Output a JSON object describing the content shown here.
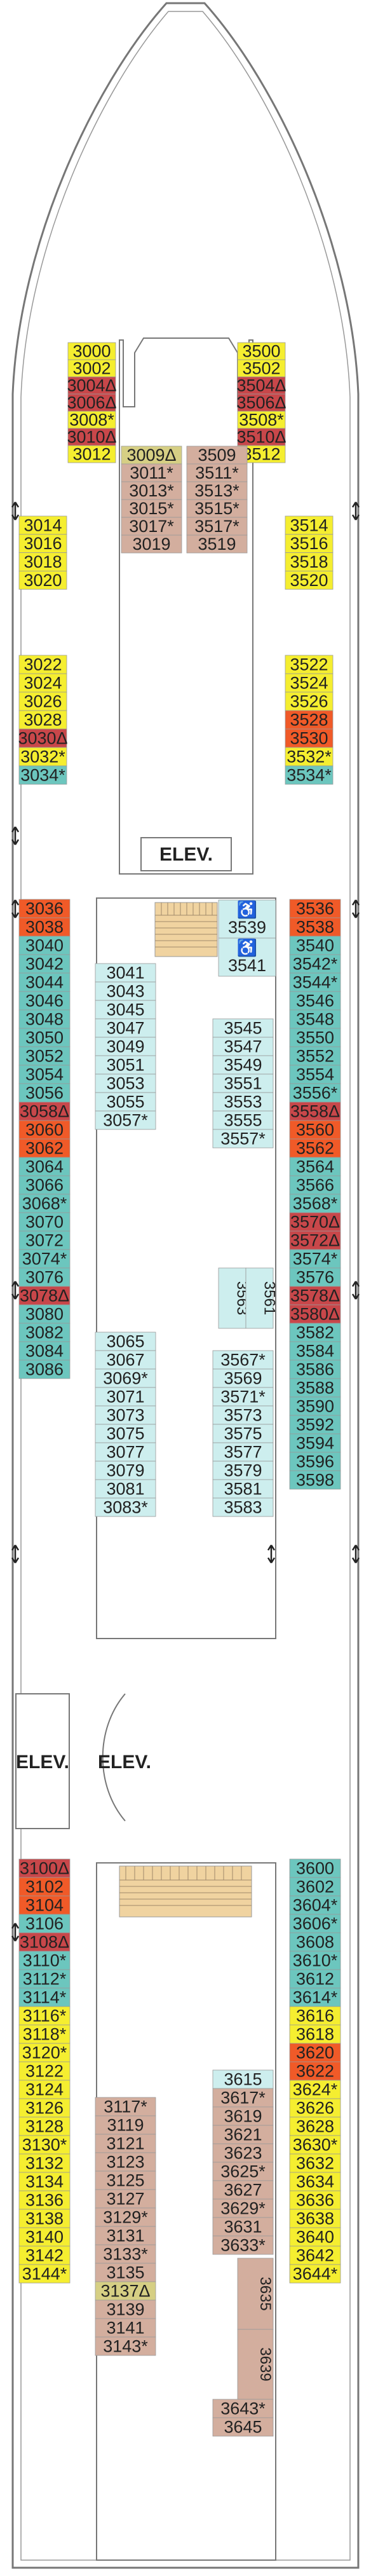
{
  "colors": {
    "yellow": "#f5ee30",
    "teal": "#6cc6be",
    "light_teal": "#cdeeee",
    "tan": "#d3ae9e",
    "orange": "#f05a28",
    "red_dark": "#c8474a",
    "olive": "#d6cf84",
    "stair": "#f0d3a0",
    "floor": "#ffffff",
    "outline": "#777777"
  },
  "legend_symbols": {
    "connecting": "*",
    "third_fourth_berth": "Δ"
  },
  "elevator_labels": [
    "ELEV.",
    "ELEV.",
    "ELEV."
  ],
  "cabins": [
    {
      "n": "3000",
      "c": "yellow"
    },
    {
      "n": "3002",
      "c": "yellow"
    },
    {
      "n": "3004",
      "s": "Δ",
      "c": "red_dark"
    },
    {
      "n": "3006",
      "s": "Δ",
      "c": "red_dark"
    },
    {
      "n": "3008",
      "s": "*",
      "c": "yellow"
    },
    {
      "n": "3010",
      "s": "Δ",
      "c": "red_dark"
    },
    {
      "n": "3012",
      "c": "yellow"
    },
    {
      "n": "3014",
      "c": "yellow"
    },
    {
      "n": "3016",
      "c": "yellow"
    },
    {
      "n": "3018",
      "c": "yellow"
    },
    {
      "n": "3020",
      "c": "yellow"
    },
    {
      "n": "3022",
      "c": "yellow"
    },
    {
      "n": "3024",
      "c": "yellow"
    },
    {
      "n": "3026",
      "c": "yellow"
    },
    {
      "n": "3028",
      "c": "yellow"
    },
    {
      "n": "3030",
      "s": "Δ",
      "c": "red_dark"
    },
    {
      "n": "3032",
      "s": "*",
      "c": "yellow"
    },
    {
      "n": "3034",
      "s": "*",
      "c": "teal"
    },
    {
      "n": "3500",
      "c": "yellow"
    },
    {
      "n": "3502",
      "c": "yellow"
    },
    {
      "n": "3504",
      "s": "Δ",
      "c": "red_dark"
    },
    {
      "n": "3506",
      "s": "Δ",
      "c": "red_dark"
    },
    {
      "n": "3508",
      "s": "*",
      "c": "yellow"
    },
    {
      "n": "3510",
      "s": "Δ",
      "c": "red_dark"
    },
    {
      "n": "3512",
      "c": "yellow"
    },
    {
      "n": "3514",
      "c": "yellow"
    },
    {
      "n": "3516",
      "c": "yellow"
    },
    {
      "n": "3518",
      "c": "yellow"
    },
    {
      "n": "3520",
      "c": "yellow"
    },
    {
      "n": "3522",
      "c": "yellow"
    },
    {
      "n": "3524",
      "c": "yellow"
    },
    {
      "n": "3526",
      "c": "yellow"
    },
    {
      "n": "3528",
      "c": "orange"
    },
    {
      "n": "3530",
      "c": "orange"
    },
    {
      "n": "3532",
      "s": "*",
      "c": "yellow"
    },
    {
      "n": "3534",
      "s": "*",
      "c": "teal"
    },
    {
      "n": "3009",
      "s": "Δ",
      "c": "olive"
    },
    {
      "n": "3011",
      "s": "*",
      "c": "tan"
    },
    {
      "n": "3013",
      "s": "*",
      "c": "tan"
    },
    {
      "n": "3015",
      "s": "*",
      "c": "tan"
    },
    {
      "n": "3017",
      "s": "*",
      "c": "tan"
    },
    {
      "n": "3019",
      "c": "tan"
    },
    {
      "n": "3509",
      "c": "tan"
    },
    {
      "n": "3511",
      "s": "*",
      "c": "tan"
    },
    {
      "n": "3513",
      "s": "*",
      "c": "tan"
    },
    {
      "n": "3515",
      "s": "*",
      "c": "tan"
    },
    {
      "n": "3517",
      "s": "*",
      "c": "tan"
    },
    {
      "n": "3519",
      "c": "tan"
    },
    {
      "n": "3036",
      "c": "orange"
    },
    {
      "n": "3038",
      "c": "orange"
    },
    {
      "n": "3040",
      "c": "teal"
    },
    {
      "n": "3042",
      "c": "teal"
    },
    {
      "n": "3044",
      "c": "teal"
    },
    {
      "n": "3046",
      "c": "teal"
    },
    {
      "n": "3048",
      "c": "teal"
    },
    {
      "n": "3050",
      "c": "teal"
    },
    {
      "n": "3052",
      "c": "teal"
    },
    {
      "n": "3054",
      "c": "teal"
    },
    {
      "n": "3056",
      "c": "teal"
    },
    {
      "n": "3058",
      "s": "Δ",
      "c": "red_dark"
    },
    {
      "n": "3060",
      "c": "orange"
    },
    {
      "n": "3062",
      "c": "orange"
    },
    {
      "n": "3064",
      "c": "teal"
    },
    {
      "n": "3066",
      "c": "teal"
    },
    {
      "n": "3068",
      "s": "*",
      "c": "teal"
    },
    {
      "n": "3070",
      "c": "teal"
    },
    {
      "n": "3072",
      "c": "teal"
    },
    {
      "n": "3074",
      "s": "*",
      "c": "teal"
    },
    {
      "n": "3076",
      "c": "teal"
    },
    {
      "n": "3078",
      "s": "Δ",
      "c": "red_dark"
    },
    {
      "n": "3080",
      "c": "teal"
    },
    {
      "n": "3082",
      "c": "teal"
    },
    {
      "n": "3084",
      "c": "teal"
    },
    {
      "n": "3086",
      "c": "teal"
    },
    {
      "n": "3536",
      "c": "orange"
    },
    {
      "n": "3538",
      "c": "orange"
    },
    {
      "n": "3540",
      "c": "teal"
    },
    {
      "n": "3542",
      "s": "*",
      "c": "teal"
    },
    {
      "n": "3544",
      "s": "*",
      "c": "teal"
    },
    {
      "n": "3546",
      "c": "teal"
    },
    {
      "n": "3548",
      "c": "teal"
    },
    {
      "n": "3550",
      "c": "teal"
    },
    {
      "n": "3552",
      "c": "teal"
    },
    {
      "n": "3554",
      "c": "teal"
    },
    {
      "n": "3556",
      "s": "*",
      "c": "teal"
    },
    {
      "n": "3558",
      "s": "Δ",
      "c": "red_dark"
    },
    {
      "n": "3560",
      "c": "orange"
    },
    {
      "n": "3562",
      "c": "orange"
    },
    {
      "n": "3564",
      "c": "teal"
    },
    {
      "n": "3566",
      "c": "teal"
    },
    {
      "n": "3568",
      "s": "*",
      "c": "teal"
    },
    {
      "n": "3570",
      "s": "Δ",
      "c": "red_dark"
    },
    {
      "n": "3572",
      "s": "Δ",
      "c": "red_dark"
    },
    {
      "n": "3574",
      "s": "*",
      "c": "teal"
    },
    {
      "n": "3576",
      "c": "teal"
    },
    {
      "n": "3578",
      "s": "Δ",
      "c": "red_dark"
    },
    {
      "n": "3580",
      "s": "Δ",
      "c": "red_dark"
    },
    {
      "n": "3582",
      "c": "teal"
    },
    {
      "n": "3584",
      "c": "teal"
    },
    {
      "n": "3586",
      "c": "teal"
    },
    {
      "n": "3588",
      "c": "teal"
    },
    {
      "n": "3590",
      "c": "teal"
    },
    {
      "n": "3592",
      "c": "teal"
    },
    {
      "n": "3594",
      "c": "teal"
    },
    {
      "n": "3596",
      "c": "teal"
    },
    {
      "n": "3598",
      "c": "teal"
    },
    {
      "n": "3041",
      "c": "light_teal"
    },
    {
      "n": "3043",
      "c": "light_teal"
    },
    {
      "n": "3045",
      "c": "light_teal"
    },
    {
      "n": "3047",
      "c": "light_teal"
    },
    {
      "n": "3049",
      "c": "light_teal"
    },
    {
      "n": "3051",
      "c": "light_teal"
    },
    {
      "n": "3053",
      "c": "light_teal"
    },
    {
      "n": "3055",
      "c": "light_teal"
    },
    {
      "n": "3057",
      "s": "*",
      "c": "light_teal"
    },
    {
      "n": "3065",
      "c": "light_teal"
    },
    {
      "n": "3067",
      "c": "light_teal"
    },
    {
      "n": "3069",
      "s": "*",
      "c": "light_teal"
    },
    {
      "n": "3071",
      "c": "light_teal"
    },
    {
      "n": "3073",
      "c": "light_teal"
    },
    {
      "n": "3075",
      "c": "light_teal"
    },
    {
      "n": "3077",
      "c": "light_teal"
    },
    {
      "n": "3079",
      "c": "light_teal"
    },
    {
      "n": "3081",
      "c": "light_teal"
    },
    {
      "n": "3083",
      "s": "*",
      "c": "light_teal"
    },
    {
      "n": "3539",
      "c": "light_teal"
    },
    {
      "n": "3541",
      "c": "light_teal"
    },
    {
      "n": "3545",
      "c": "light_teal"
    },
    {
      "n": "3547",
      "c": "light_teal"
    },
    {
      "n": "3549",
      "c": "light_teal"
    },
    {
      "n": "3551",
      "c": "light_teal"
    },
    {
      "n": "3553",
      "c": "light_teal"
    },
    {
      "n": "3555",
      "c": "light_teal"
    },
    {
      "n": "3557",
      "s": "*",
      "c": "light_teal"
    },
    {
      "n": "3563",
      "c": "light_teal"
    },
    {
      "n": "3561",
      "c": "light_teal"
    },
    {
      "n": "3567",
      "s": "*",
      "c": "light_teal"
    },
    {
      "n": "3569",
      "c": "light_teal"
    },
    {
      "n": "3571",
      "s": "*",
      "c": "light_teal"
    },
    {
      "n": "3573",
      "c": "light_teal"
    },
    {
      "n": "3575",
      "c": "light_teal"
    },
    {
      "n": "3577",
      "c": "light_teal"
    },
    {
      "n": "3579",
      "c": "light_teal"
    },
    {
      "n": "3581",
      "c": "light_teal"
    },
    {
      "n": "3583",
      "c": "light_teal"
    },
    {
      "n": "3100",
      "s": "Δ",
      "c": "red_dark"
    },
    {
      "n": "3102",
      "c": "orange"
    },
    {
      "n": "3104",
      "c": "orange"
    },
    {
      "n": "3106",
      "c": "teal"
    },
    {
      "n": "3108",
      "s": "Δ",
      "c": "red_dark"
    },
    {
      "n": "3110",
      "s": "*",
      "c": "teal"
    },
    {
      "n": "3112",
      "s": "*",
      "c": "teal"
    },
    {
      "n": "3114",
      "s": "*",
      "c": "teal"
    },
    {
      "n": "3116",
      "s": "*",
      "c": "yellow"
    },
    {
      "n": "3118",
      "s": "*",
      "c": "yellow"
    },
    {
      "n": "3120",
      "s": "*",
      "c": "yellow"
    },
    {
      "n": "3122",
      "c": "yellow"
    },
    {
      "n": "3124",
      "c": "yellow"
    },
    {
      "n": "3126",
      "c": "yellow"
    },
    {
      "n": "3128",
      "c": "yellow"
    },
    {
      "n": "3130",
      "s": "*",
      "c": "yellow"
    },
    {
      "n": "3132",
      "c": "yellow"
    },
    {
      "n": "3134",
      "c": "yellow"
    },
    {
      "n": "3136",
      "c": "yellow"
    },
    {
      "n": "3138",
      "c": "yellow"
    },
    {
      "n": "3140",
      "c": "yellow"
    },
    {
      "n": "3142",
      "c": "yellow"
    },
    {
      "n": "3144",
      "s": "*",
      "c": "yellow"
    },
    {
      "n": "3600",
      "c": "teal"
    },
    {
      "n": "3602",
      "c": "teal"
    },
    {
      "n": "3604",
      "s": "*",
      "c": "teal"
    },
    {
      "n": "3606",
      "s": "*",
      "c": "teal"
    },
    {
      "n": "3608",
      "c": "teal"
    },
    {
      "n": "3610",
      "s": "*",
      "c": "teal"
    },
    {
      "n": "3612",
      "c": "teal"
    },
    {
      "n": "3614",
      "s": "*",
      "c": "teal"
    },
    {
      "n": "3616",
      "c": "yellow"
    },
    {
      "n": "3618",
      "c": "yellow"
    },
    {
      "n": "3620",
      "c": "orange"
    },
    {
      "n": "3622",
      "c": "orange"
    },
    {
      "n": "3624",
      "s": "*",
      "c": "yellow"
    },
    {
      "n": "3626",
      "c": "yellow"
    },
    {
      "n": "3628",
      "c": "yellow"
    },
    {
      "n": "3630",
      "s": "*",
      "c": "yellow"
    },
    {
      "n": "3632",
      "c": "yellow"
    },
    {
      "n": "3634",
      "c": "yellow"
    },
    {
      "n": "3636",
      "c": "yellow"
    },
    {
      "n": "3638",
      "c": "yellow"
    },
    {
      "n": "3640",
      "c": "yellow"
    },
    {
      "n": "3642",
      "c": "yellow"
    },
    {
      "n": "3644",
      "s": "*",
      "c": "yellow"
    },
    {
      "n": "3117",
      "s": "*",
      "c": "tan"
    },
    {
      "n": "3119",
      "c": "tan"
    },
    {
      "n": "3121",
      "c": "tan"
    },
    {
      "n": "3123",
      "c": "tan"
    },
    {
      "n": "3125",
      "c": "tan"
    },
    {
      "n": "3127",
      "c": "tan"
    },
    {
      "n": "3129",
      "s": "*",
      "c": "tan"
    },
    {
      "n": "3131",
      "c": "tan"
    },
    {
      "n": "3133",
      "s": "*",
      "c": "tan"
    },
    {
      "n": "3135",
      "c": "tan"
    },
    {
      "n": "3137",
      "s": "Δ",
      "c": "olive"
    },
    {
      "n": "3139",
      "c": "tan"
    },
    {
      "n": "3141",
      "c": "tan"
    },
    {
      "n": "3143",
      "s": "*",
      "c": "tan"
    },
    {
      "n": "3615",
      "c": "light_teal"
    },
    {
      "n": "3617",
      "s": "*",
      "c": "tan"
    },
    {
      "n": "3619",
      "c": "tan"
    },
    {
      "n": "3621",
      "c": "tan"
    },
    {
      "n": "3623",
      "c": "tan"
    },
    {
      "n": "3625",
      "s": "*",
      "c": "tan"
    },
    {
      "n": "3627",
      "c": "tan"
    },
    {
      "n": "3629",
      "s": "*",
      "c": "tan"
    },
    {
      "n": "3631",
      "c": "tan"
    },
    {
      "n": "3633",
      "s": "*",
      "c": "tan"
    },
    {
      "n": "3635",
      "c": "tan"
    },
    {
      "n": "3639",
      "c": "tan"
    },
    {
      "n": "3643",
      "s": "*",
      "c": "tan"
    },
    {
      "n": "3645",
      "c": "tan"
    }
  ]
}
